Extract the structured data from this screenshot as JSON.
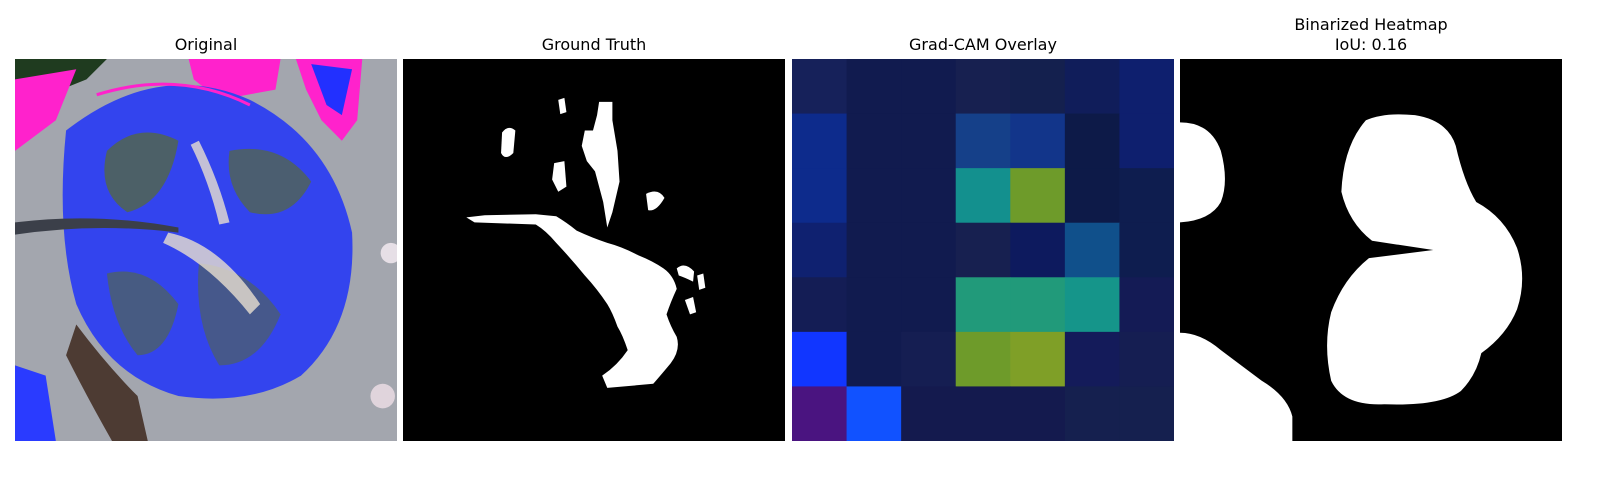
{
  "panels": [
    {
      "title": "Original"
    },
    {
      "title": "Ground Truth"
    },
    {
      "title": "Grad-CAM Overlay"
    },
    {
      "title_line1": "Binarized Heatmap",
      "title_line2": "IoU: 0.16"
    }
  ],
  "gradcam": {
    "rows": 7,
    "cols": 7,
    "cells": [
      [
        "#16215a",
        "#111b4f",
        "#111b4f",
        "#172050",
        "#14204e",
        "#101d5a",
        "#0e1f6e"
      ],
      [
        "#0d2b8c",
        "#111b4f",
        "#111b4f",
        "#154089",
        "#12358a",
        "#0d1a48",
        "#0e1f6e"
      ],
      [
        "#0d2b8c",
        "#111b4f",
        "#111b4f",
        "#13908e",
        "#6e9b2a",
        "#0d1a48",
        "#0e1d4f"
      ],
      [
        "#0f2170",
        "#111b4f",
        "#111b4f",
        "#172050",
        "#0d1a5e",
        "#10508b",
        "#0e1d4f"
      ],
      [
        "#141d55",
        "#111b4f",
        "#111b4f",
        "#219a7a",
        "#219a7a",
        "#15958a",
        "#141b55"
      ],
      [
        "#1136ff",
        "#111b4f",
        "#151e52",
        "#6e9b2a",
        "#7f9f27",
        "#141b5a",
        "#151e52"
      ],
      [
        "#4a1480",
        "#1152ff",
        "#141a4e",
        "#141a4e",
        "#141a4e",
        "#15204f",
        "#15204f"
      ]
    ]
  }
}
